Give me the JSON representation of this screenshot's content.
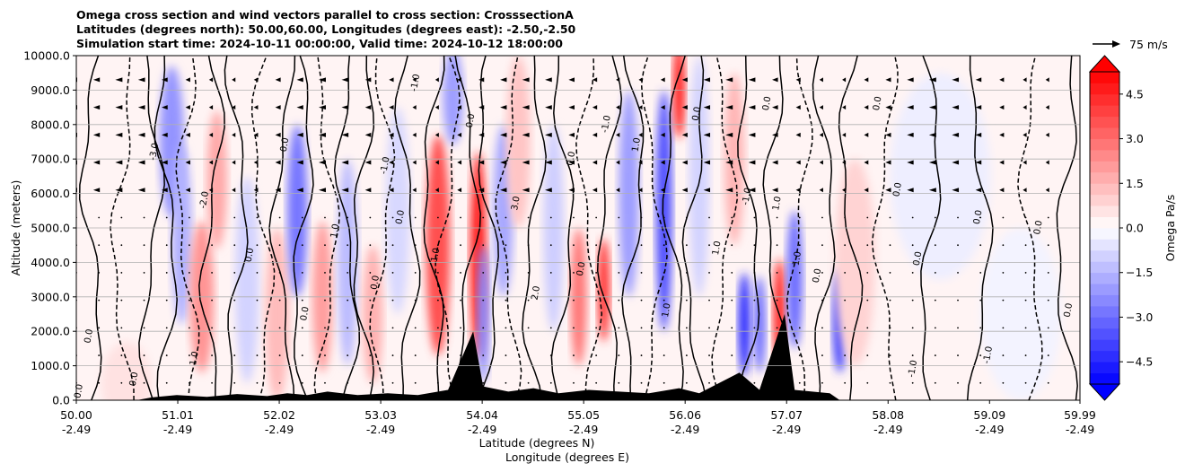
{
  "chart_data": {
    "type": "heatmap",
    "title_lines": [
      "Omega cross section and wind vectors parallel to cross section: CrosssectionA",
      "Latitudes (degrees north): 50.00,60.00, Longitudes (degrees east): -2.50,-2.50",
      "Simulation start time: 2024-10-11 00:00:00, Valid time: 2024-10-12 18:00:00"
    ],
    "ylabel": "Altitude (meters)",
    "xlabel_line1": "Latitude (degrees N)",
    "xlabel_line2": "Longitude (degrees E)",
    "ylim": [
      0,
      10000
    ],
    "yticks": [
      "0.0",
      "1000.0",
      "2000.0",
      "3000.0",
      "4000.0",
      "5000.0",
      "6000.0",
      "7000.0",
      "8000.0",
      "9000.0",
      "10000.0"
    ],
    "xlim": [
      50.0,
      59.99
    ],
    "xticks": [
      {
        "lat": "50.00",
        "lon": "-2.49"
      },
      {
        "lat": "51.01",
        "lon": "-2.49"
      },
      {
        "lat": "52.02",
        "lon": "-2.49"
      },
      {
        "lat": "53.03",
        "lon": "-2.49"
      },
      {
        "lat": "54.04",
        "lon": "-2.49"
      },
      {
        "lat": "55.05",
        "lon": "-2.49"
      },
      {
        "lat": "56.06",
        "lon": "-2.49"
      },
      {
        "lat": "57.07",
        "lon": "-2.49"
      },
      {
        "lat": "58.08",
        "lon": "-2.49"
      },
      {
        "lat": "59.09",
        "lon": "-2.49"
      },
      {
        "lat": "59.99",
        "lon": "-2.49"
      }
    ],
    "grid": "horizontal",
    "colorbar": {
      "label": "Omega Pa/s",
      "range": [
        -5.25,
        5.25
      ],
      "ticks": [
        "4.5",
        "3.0",
        "1.5",
        "0.0",
        "−1.5",
        "−3.0",
        "−4.5"
      ],
      "tick_values": [
        4.5,
        3.0,
        1.5,
        0.0,
        -1.5,
        -3.0,
        -4.5
      ],
      "extend": "both",
      "cmap": "bwr"
    },
    "vector_key": "75 m/s",
    "contour_labels": [
      {
        "lat": 50.15,
        "alt": 1850,
        "text": "0.0"
      },
      {
        "lat": 50.05,
        "alt": 250,
        "text": "0.0"
      },
      {
        "lat": 50.6,
        "alt": 600,
        "text": "0.0"
      },
      {
        "lat": 50.8,
        "alt": 7200,
        "text": "-3.0"
      },
      {
        "lat": 51.2,
        "alt": 1200,
        "text": "1.0"
      },
      {
        "lat": 51.3,
        "alt": 5800,
        "text": "-2.0"
      },
      {
        "lat": 51.75,
        "alt": 4200,
        "text": "0.0"
      },
      {
        "lat": 52.1,
        "alt": 7400,
        "text": "0.0"
      },
      {
        "lat": 52.3,
        "alt": 2500,
        "text": "0.0"
      },
      {
        "lat": 52.6,
        "alt": 4900,
        "text": "1.0"
      },
      {
        "lat": 53.0,
        "alt": 3400,
        "text": "0.0"
      },
      {
        "lat": 53.1,
        "alt": 6800,
        "text": "-1.0"
      },
      {
        "lat": 53.25,
        "alt": 5300,
        "text": "0.0"
      },
      {
        "lat": 53.4,
        "alt": 9200,
        "text": "-1.0"
      },
      {
        "lat": 53.6,
        "alt": 4200,
        "text": "1.0"
      },
      {
        "lat": 53.95,
        "alt": 8100,
        "text": "0.0"
      },
      {
        "lat": 54.4,
        "alt": 5700,
        "text": "3.0"
      },
      {
        "lat": 54.6,
        "alt": 3100,
        "text": "2.0"
      },
      {
        "lat": 54.95,
        "alt": 7000,
        "text": "0.0"
      },
      {
        "lat": 55.05,
        "alt": 3800,
        "text": "0.0"
      },
      {
        "lat": 55.3,
        "alt": 8000,
        "text": "-1.0"
      },
      {
        "lat": 55.6,
        "alt": 7400,
        "text": "1.0"
      },
      {
        "lat": 55.9,
        "alt": 2600,
        "text": "1.0"
      },
      {
        "lat": 56.2,
        "alt": 8300,
        "text": "0.0"
      },
      {
        "lat": 56.4,
        "alt": 4400,
        "text": "1.0"
      },
      {
        "lat": 56.7,
        "alt": 5900,
        "text": "-1.0"
      },
      {
        "lat": 56.9,
        "alt": 8600,
        "text": "0.0"
      },
      {
        "lat": 57.0,
        "alt": 5700,
        "text": "1.0"
      },
      {
        "lat": 57.2,
        "alt": 4100,
        "text": "1.0"
      },
      {
        "lat": 57.4,
        "alt": 3600,
        "text": "0.0"
      },
      {
        "lat": 58.0,
        "alt": 8600,
        "text": "0.0"
      },
      {
        "lat": 58.2,
        "alt": 6100,
        "text": "0.0"
      },
      {
        "lat": 58.4,
        "alt": 4100,
        "text": "0.0"
      },
      {
        "lat": 58.35,
        "alt": 900,
        "text": "-1.0"
      },
      {
        "lat": 59.0,
        "alt": 5300,
        "text": "0.0"
      },
      {
        "lat": 59.1,
        "alt": 1300,
        "text": "-1.0"
      },
      {
        "lat": 59.6,
        "alt": 5000,
        "text": "0.0"
      },
      {
        "lat": 59.9,
        "alt": 2600,
        "text": "0.0"
      }
    ]
  }
}
